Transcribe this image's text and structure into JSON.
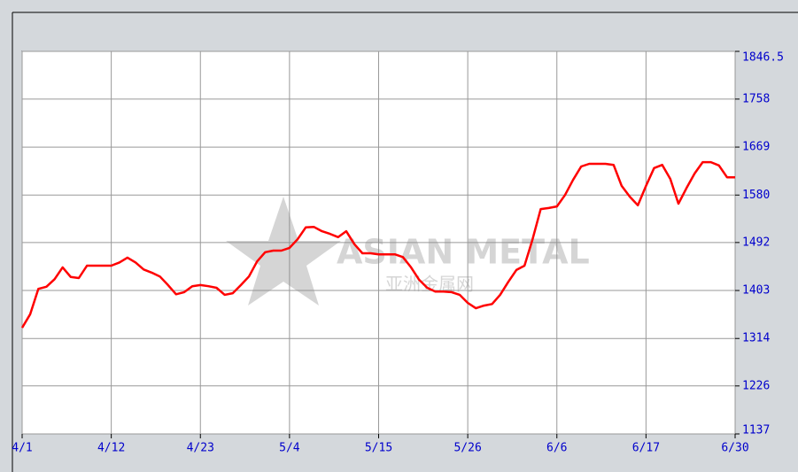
{
  "chart_data": {
    "type": "line",
    "watermark": [
      "ASIAN METAL",
      "亚洲金属网"
    ],
    "categories": [
      "4/1",
      null,
      null,
      null,
      null,
      null,
      null,
      null,
      null,
      null,
      null,
      "4/12",
      null,
      null,
      null,
      null,
      null,
      null,
      null,
      null,
      null,
      null,
      "4/23",
      null,
      null,
      null,
      null,
      null,
      null,
      null,
      null,
      null,
      null,
      "5/4",
      null,
      null,
      null,
      null,
      null,
      null,
      null,
      null,
      null,
      null,
      "5/15",
      null,
      null,
      null,
      null,
      null,
      null,
      null,
      null,
      null,
      null,
      "5/26",
      null,
      null,
      null,
      null,
      null,
      null,
      null,
      null,
      null,
      null,
      "6/6",
      null,
      null,
      null,
      null,
      null,
      null,
      null,
      null,
      null,
      null,
      "6/17",
      null,
      null,
      null,
      null,
      null,
      null,
      null,
      null,
      null,
      null,
      "6/30"
    ],
    "series": [
      {
        "color": "#ff0000",
        "values": [
          1334,
          1359,
          1406,
          1410,
          1424,
          1446,
          1428,
          1426,
          1449,
          1449,
          1449,
          1449,
          1455,
          1464,
          1455,
          1442,
          1436,
          1429,
          1413,
          1396,
          1400,
          1411,
          1413,
          1411,
          1408,
          1395,
          1398,
          1413,
          1429,
          1457,
          1474,
          1477,
          1477,
          1482,
          1498,
          1520,
          1521,
          1513,
          1508,
          1502,
          1513,
          1489,
          1472,
          1472,
          1470,
          1470,
          1470,
          1465,
          1446,
          1423,
          1408,
          1401,
          1401,
          1400,
          1395,
          1380,
          1370,
          1375,
          1378,
          1395,
          1419,
          1441,
          1449,
          1498,
          1554,
          1556,
          1559,
          1580,
          1608,
          1633,
          1638,
          1638,
          1638,
          1636,
          1597,
          1577,
          1561,
          1597,
          1630,
          1636,
          1610,
          1564,
          1593,
          1620,
          1641,
          1641,
          1635,
          1613,
          1613
        ]
      }
    ],
    "ylim": [
      1137,
      1846.5
    ],
    "yticks": [
      1137,
      1226,
      1314,
      1403,
      1492,
      1580,
      1669,
      1758,
      1846.5
    ],
    "grid": true
  }
}
